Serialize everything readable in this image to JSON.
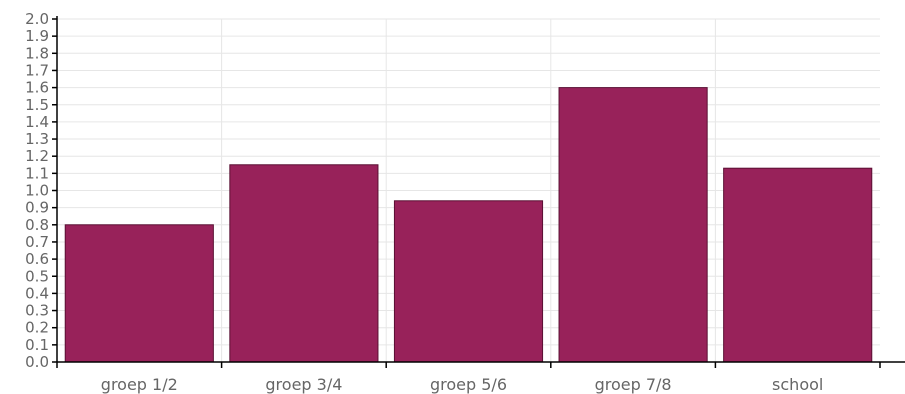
{
  "chart_data": {
    "type": "bar",
    "categories": [
      "groep 1/2",
      "groep 3/4",
      "groep 5/6",
      "groep 7/8",
      "school"
    ],
    "values": [
      0.8,
      1.15,
      0.94,
      1.6,
      1.13
    ],
    "title": "",
    "xlabel": "",
    "ylabel": "",
    "ylim": [
      0,
      2.0
    ],
    "ytick_step": 0.1,
    "grid": true,
    "legend": "none",
    "bar_color": "#98225a",
    "grid_color": "#e6e6e6",
    "tick_label_color": "#666666"
  }
}
